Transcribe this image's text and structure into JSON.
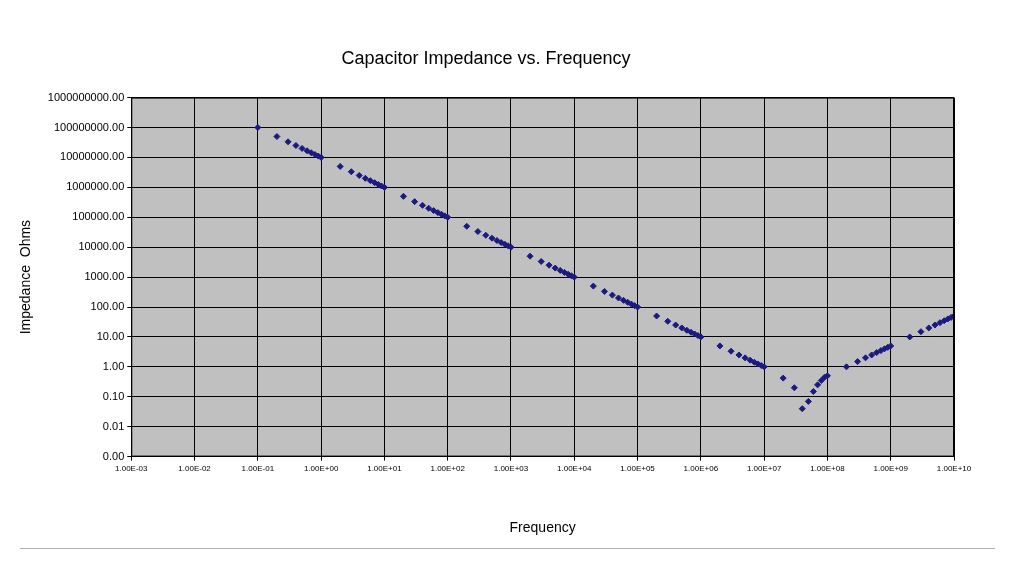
{
  "chart_data": {
    "type": "scatter",
    "title": "Capacitor Impedance vs. Frequency",
    "x_label": "Frequency",
    "y_label": "Impedance  Ohms",
    "log": true,
    "grid": true,
    "color": "#1a1a80",
    "marker": "diamond",
    "xlim": [
      0.001,
      10000000000.0
    ],
    "ylim": [
      0.001,
      1000000000.0
    ],
    "xticks": [
      {
        "value": 0.001,
        "label": "1.00E-03"
      },
      {
        "value": 0.01,
        "label": "1.00E-02"
      },
      {
        "value": 0.1,
        "label": "1.00E-01"
      },
      {
        "value": 1,
        "label": "1.00E+00"
      },
      {
        "value": 10,
        "label": "1.00E+01"
      },
      {
        "value": 100,
        "label": "1.00E+02"
      },
      {
        "value": 1000,
        "label": "1.00E+03"
      },
      {
        "value": 10000,
        "label": "1.00E+04"
      },
      {
        "value": 100000,
        "label": "1.00E+05"
      },
      {
        "value": 1000000,
        "label": "1.00E+06"
      },
      {
        "value": 10000000,
        "label": "1.00E+07"
      },
      {
        "value": 100000000,
        "label": "1.00E+08"
      },
      {
        "value": 1000000000,
        "label": "1.00E+09"
      },
      {
        "value": 10000000000,
        "label": "1.00E+10"
      }
    ],
    "yticks": [
      {
        "value": 0.001,
        "label": "0.00"
      },
      {
        "value": 0.01,
        "label": "0.01"
      },
      {
        "value": 0.1,
        "label": "0.10"
      },
      {
        "value": 1,
        "label": "1.00"
      },
      {
        "value": 10,
        "label": "10.00"
      },
      {
        "value": 100,
        "label": "100.00"
      },
      {
        "value": 1000,
        "label": "1000.00"
      },
      {
        "value": 10000,
        "label": "10000.00"
      },
      {
        "value": 100000,
        "label": "100000.00"
      },
      {
        "value": 1000000,
        "label": "1000000.00"
      },
      {
        "value": 10000000,
        "label": "10000000.00"
      },
      {
        "value": 100000000,
        "label": "100000000.00"
      },
      {
        "value": 1000000000,
        "label": "1000000000.00"
      }
    ],
    "x": [
      0.1,
      0.2,
      0.3,
      0.4,
      0.5,
      0.6,
      0.7,
      0.8,
      0.9,
      1,
      2,
      3,
      4,
      5,
      6,
      7,
      8,
      9,
      10,
      20,
      30,
      40,
      50,
      60,
      70,
      80,
      90,
      100,
      200,
      300,
      400,
      500,
      600,
      700,
      800,
      900,
      1000,
      2000,
      3000,
      4000,
      5000,
      6000,
      7000,
      8000,
      9000,
      10000,
      20000,
      30000,
      40000,
      50000,
      60000,
      70000,
      80000,
      90000,
      100000,
      200000,
      300000,
      400000,
      500000,
      600000,
      700000,
      800000,
      900000,
      1000000,
      2000000,
      3000000,
      4000000,
      5000000,
      6000000,
      7000000,
      8000000,
      9000000,
      10000000,
      20000000,
      30000000,
      40000000,
      50000000,
      60000000,
      70000000,
      80000000,
      90000000,
      100000000,
      200000000,
      300000000,
      400000000,
      500000000,
      600000000,
      700000000,
      800000000,
      900000000,
      1000000000,
      2000000000,
      3000000000,
      4000000000,
      5000000000,
      6000000000,
      7000000000,
      8000000000,
      9000000000,
      10000000000
    ],
    "values": [
      100000000,
      50000000,
      33300000,
      25000000,
      20000000,
      16700000,
      14300000,
      12500000,
      11100000,
      10000000,
      5000000,
      3330000,
      2500000,
      2000000,
      1670000,
      1430000,
      1250000,
      1110000,
      1000000,
      500000,
      333000,
      250000,
      200000,
      167000,
      143000,
      125000,
      111000,
      100000,
      50000,
      33300,
      25000,
      20000,
      16700,
      14300,
      12500,
      11100,
      10000,
      5000,
      3330,
      2500,
      2000,
      1670,
      1430,
      1250,
      1110,
      1000,
      500,
      333,
      250,
      200,
      167,
      143,
      125,
      111,
      100,
      50,
      33.3,
      25,
      20,
      16.7,
      14.3,
      12.5,
      11.1,
      10,
      5,
      3.33,
      2.5,
      2,
      1.67,
      1.43,
      1.25,
      1.11,
      1,
      0.42,
      0.2,
      0.04,
      0.07,
      0.15,
      0.25,
      0.35,
      0.45,
      0.5,
      1,
      1.5,
      2,
      2.5,
      3,
      3.5,
      4,
      4.5,
      5,
      10,
      15,
      20,
      25,
      30,
      35,
      40,
      45,
      50
    ]
  }
}
